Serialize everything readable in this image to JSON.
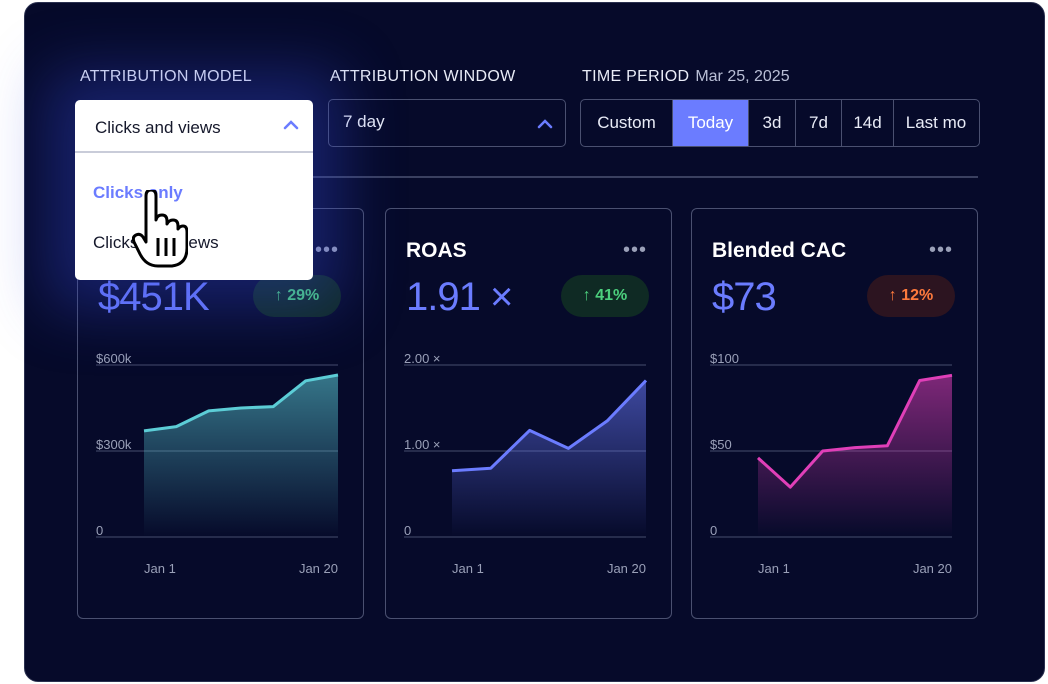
{
  "filters": {
    "attribution_model": {
      "label": "ATTRIBUTION MODEL",
      "value": "Clicks and views",
      "options": [
        "Clicks only",
        "Clicks and views"
      ]
    },
    "attribution_window": {
      "label": "ATTRIBUTION WINDOW",
      "value": "7 day"
    },
    "time_period": {
      "label": "TIME PERIOD",
      "date": "Mar 25, 2025",
      "options": [
        "Custom",
        "Today",
        "3d",
        "7d",
        "14d",
        "Last mo"
      ],
      "selected": "Today"
    }
  },
  "colors": {
    "accent": "#6b7cff",
    "teal": "#5ccdd6",
    "pink": "#e03fb8",
    "panel": "#060a2a"
  },
  "cards": [
    {
      "title": "",
      "value": "$451K",
      "change": "29%",
      "change_color": "#4cd07d",
      "y_ticks": [
        "$600k",
        "$300k",
        "0"
      ],
      "x_ticks": [
        "Jan 1",
        "Jan 20"
      ]
    },
    {
      "title": "ROAS",
      "value": "1.91 ×",
      "change": "41%",
      "change_color": "#4cd07d",
      "y_ticks": [
        "2.00 ×",
        "1.00 ×",
        "0"
      ],
      "x_ticks": [
        "Jan 1",
        "Jan 20"
      ]
    },
    {
      "title": "Blended CAC",
      "value": "$73",
      "change": "12%",
      "change_color": "#ff7a3d",
      "y_ticks": [
        "$100",
        "$50",
        "0"
      ],
      "x_ticks": [
        "Jan 1",
        "Jan 20"
      ]
    }
  ],
  "chart_data": [
    {
      "type": "area",
      "color": "#5ccdd6",
      "ylim": [
        0,
        600
      ],
      "y": [
        370,
        385,
        440,
        450,
        455,
        545,
        565
      ]
    },
    {
      "type": "area",
      "color": "#6b7cff",
      "ylim": [
        0,
        2
      ],
      "y": [
        0.77,
        0.8,
        1.24,
        1.03,
        1.35,
        1.82
      ]
    },
    {
      "type": "area",
      "color": "#e03fb8",
      "ylim": [
        0,
        100
      ],
      "y": [
        46,
        29,
        50,
        52,
        53,
        91,
        94
      ]
    }
  ]
}
